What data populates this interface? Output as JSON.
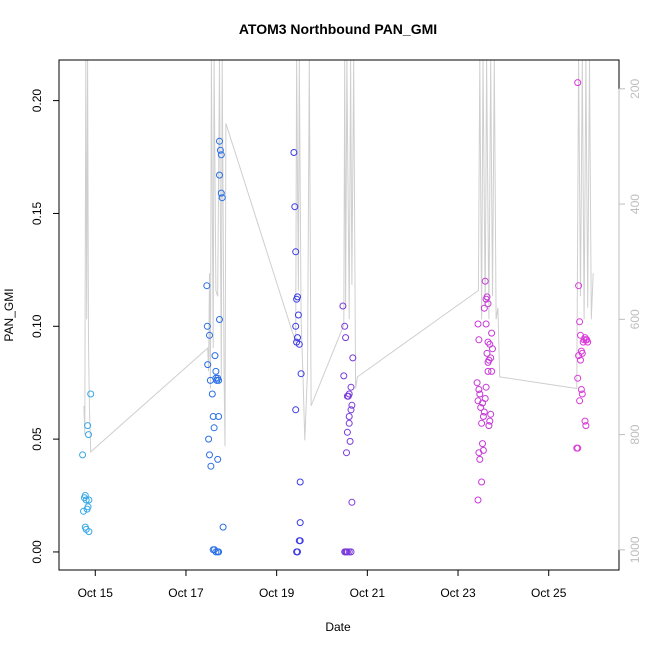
{
  "chart_data": {
    "type": "scatter",
    "title": "ATOM3 Northbound PAN_GMI",
    "xlabel": "Date",
    "ylabel": "PAN_GMI",
    "x_unit": "days (Oct)",
    "xlim": [
      14.2,
      26.55
    ],
    "ylim": [
      -0.008,
      0.218
    ],
    "x_ticks": [
      {
        "value": 15,
        "label": "Oct 15"
      },
      {
        "value": 17,
        "label": "Oct 17"
      },
      {
        "value": 19,
        "label": "Oct 19"
      },
      {
        "value": 21,
        "label": "Oct 21"
      },
      {
        "value": 23,
        "label": "Oct 23"
      },
      {
        "value": 25,
        "label": "Oct 25"
      }
    ],
    "y_ticks": [
      {
        "value": 0.0,
        "label": "0.00"
      },
      {
        "value": 0.05,
        "label": "0.05"
      },
      {
        "value": 0.1,
        "label": "0.10"
      },
      {
        "value": 0.15,
        "label": "0.15"
      },
      {
        "value": 0.2,
        "label": "0.20"
      }
    ],
    "secondary_axis": {
      "side": "right",
      "color": "#bdbdbd",
      "reversed": true,
      "ylim": [
        1035,
        150
      ],
      "ticks": [
        {
          "value": 200,
          "label": "200"
        },
        {
          "value": 400,
          "label": "400"
        },
        {
          "value": 600,
          "label": "600"
        },
        {
          "value": 800,
          "label": "800"
        },
        {
          "value": 1000,
          "label": "1000"
        }
      ]
    },
    "pressure_line": {
      "color": "#cfcfcf",
      "points": [
        [
          14.75,
          750
        ],
        [
          14.77,
          800
        ],
        [
          14.79,
          140
        ],
        [
          14.81,
          600
        ],
        [
          14.83,
          140
        ],
        [
          14.85,
          640
        ],
        [
          14.87,
          750
        ],
        [
          14.9,
          830
        ],
        [
          17.48,
          650
        ],
        [
          17.5,
          690
        ],
        [
          17.52,
          520
        ],
        [
          17.54,
          720
        ],
        [
          17.56,
          140
        ],
        [
          17.6,
          650
        ],
        [
          17.62,
          140
        ],
        [
          17.66,
          550
        ],
        [
          17.7,
          560
        ],
        [
          17.74,
          140
        ],
        [
          17.78,
          700
        ],
        [
          17.8,
          140
        ],
        [
          17.84,
          700
        ],
        [
          17.86,
          820
        ],
        [
          17.88,
          260
        ],
        [
          19.42,
          640
        ],
        [
          19.44,
          140
        ],
        [
          19.48,
          550
        ],
        [
          19.5,
          140
        ],
        [
          19.54,
          600
        ],
        [
          19.58,
          700
        ],
        [
          19.62,
          810
        ],
        [
          19.68,
          690
        ],
        [
          19.72,
          140
        ],
        [
          19.76,
          750
        ],
        [
          20.48,
          610
        ],
        [
          20.5,
          140
        ],
        [
          20.52,
          580
        ],
        [
          20.55,
          140
        ],
        [
          20.6,
          600
        ],
        [
          20.63,
          140
        ],
        [
          20.66,
          540
        ],
        [
          20.7,
          140
        ],
        [
          20.74,
          720
        ],
        [
          20.78,
          700
        ],
        [
          23.45,
          550
        ],
        [
          23.48,
          140
        ],
        [
          23.52,
          600
        ],
        [
          23.55,
          140
        ],
        [
          23.6,
          580
        ],
        [
          23.63,
          140
        ],
        [
          23.68,
          600
        ],
        [
          23.72,
          140
        ],
        [
          23.76,
          560
        ],
        [
          23.8,
          140
        ],
        [
          23.84,
          600
        ],
        [
          23.88,
          580
        ],
        [
          23.92,
          700
        ],
        [
          25.62,
          720
        ],
        [
          25.66,
          140
        ],
        [
          25.7,
          560
        ],
        [
          25.74,
          140
        ],
        [
          25.78,
          600
        ],
        [
          25.82,
          140
        ],
        [
          25.86,
          580
        ],
        [
          25.9,
          140
        ],
        [
          25.94,
          600
        ],
        [
          25.98,
          520
        ]
      ]
    },
    "series": [
      {
        "color": "#38a9e8",
        "points": [
          [
            14.72,
            0.043
          ],
          [
            14.74,
            0.018
          ],
          [
            14.76,
            0.024
          ],
          [
            14.78,
            0.025
          ],
          [
            14.8,
            0.023
          ],
          [
            14.78,
            0.011
          ],
          [
            14.8,
            0.01
          ],
          [
            14.82,
            0.019
          ],
          [
            14.84,
            0.02
          ],
          [
            14.86,
            0.023
          ],
          [
            14.86,
            0.009
          ],
          [
            14.83,
            0.056
          ],
          [
            14.85,
            0.052
          ],
          [
            14.9,
            0.07
          ]
        ]
      },
      {
        "color": "#2a6fe6",
        "points": [
          [
            17.46,
            0.118
          ],
          [
            17.47,
            0.1
          ],
          [
            17.48,
            0.083
          ],
          [
            17.5,
            0.05
          ],
          [
            17.52,
            0.043
          ],
          [
            17.55,
            0.038
          ],
          [
            17.52,
            0.096
          ],
          [
            17.54,
            0.076
          ],
          [
            17.58,
            0.07
          ],
          [
            17.6,
            0.06
          ],
          [
            17.62,
            0.055
          ],
          [
            17.6,
            0.001
          ],
          [
            17.63,
            0.001
          ],
          [
            17.66,
            0.0
          ],
          [
            17.7,
            0.0
          ],
          [
            17.72,
            0.0
          ],
          [
            17.64,
            0.087
          ],
          [
            17.66,
            0.08
          ],
          [
            17.68,
            0.076
          ],
          [
            17.7,
            0.077
          ],
          [
            17.72,
            0.076
          ],
          [
            17.74,
            0.103
          ],
          [
            17.66,
            0.077
          ],
          [
            17.7,
            0.041
          ],
          [
            17.72,
            0.06
          ],
          [
            17.74,
            0.182
          ],
          [
            17.76,
            0.178
          ],
          [
            17.78,
            0.176
          ],
          [
            17.74,
            0.167
          ],
          [
            17.78,
            0.159
          ],
          [
            17.8,
            0.157
          ],
          [
            17.82,
            0.011
          ]
        ]
      },
      {
        "color": "#3b3be6",
        "points": [
          [
            19.38,
            0.177
          ],
          [
            19.4,
            0.153
          ],
          [
            19.42,
            0.133
          ],
          [
            19.44,
            0.112
          ],
          [
            19.46,
            0.113
          ],
          [
            19.42,
            0.1
          ],
          [
            19.44,
            0.093
          ],
          [
            19.48,
            0.105
          ],
          [
            19.5,
            0.092
          ],
          [
            19.46,
            0.095
          ],
          [
            19.42,
            0.063
          ],
          [
            19.54,
            0.079
          ],
          [
            19.52,
            0.031
          ],
          [
            19.52,
            0.013
          ],
          [
            19.5,
            0.005
          ],
          [
            19.52,
            0.005
          ],
          [
            19.44,
            0.0
          ],
          [
            19.46,
            0.0
          ]
        ]
      },
      {
        "color": "#7a3ad9",
        "points": [
          [
            20.46,
            0.109
          ],
          [
            20.5,
            0.1
          ],
          [
            20.52,
            0.095
          ],
          [
            20.48,
            0.078
          ],
          [
            20.54,
            0.044
          ],
          [
            20.56,
            0.053
          ],
          [
            20.58,
            0.069
          ],
          [
            20.6,
            0.07
          ],
          [
            20.56,
            0.069
          ],
          [
            20.6,
            0.057
          ],
          [
            20.62,
            0.049
          ],
          [
            20.6,
            0.06
          ],
          [
            20.64,
            0.063
          ],
          [
            20.66,
            0.065
          ],
          [
            20.68,
            0.086
          ],
          [
            20.64,
            0.073
          ],
          [
            20.66,
            0.022
          ],
          [
            20.5,
            0.0
          ],
          [
            20.52,
            0.0
          ],
          [
            20.54,
            0.0
          ],
          [
            20.56,
            0.0
          ],
          [
            20.6,
            0.0
          ],
          [
            20.64,
            0.0
          ]
        ]
      },
      {
        "color": "#c639d6",
        "points": [
          [
            23.42,
            0.075
          ],
          [
            23.44,
            0.101
          ],
          [
            23.46,
            0.094
          ],
          [
            23.48,
            0.07
          ],
          [
            23.44,
            0.067
          ],
          [
            23.46,
            0.072
          ],
          [
            23.5,
            0.064
          ],
          [
            23.52,
            0.057
          ],
          [
            23.54,
            0.066
          ],
          [
            23.56,
            0.06
          ],
          [
            23.58,
            0.062
          ],
          [
            23.54,
            0.048
          ],
          [
            23.56,
            0.045
          ],
          [
            23.48,
            0.041
          ],
          [
            23.52,
            0.031
          ],
          [
            23.44,
            0.023
          ],
          [
            23.46,
            0.044
          ],
          [
            23.6,
            0.12
          ],
          [
            23.62,
            0.112
          ],
          [
            23.64,
            0.113
          ],
          [
            23.66,
            0.11
          ],
          [
            23.58,
            0.108
          ],
          [
            23.62,
            0.101
          ],
          [
            23.66,
            0.093
          ],
          [
            23.7,
            0.092
          ],
          [
            23.64,
            0.088
          ],
          [
            23.66,
            0.084
          ],
          [
            23.68,
            0.085
          ],
          [
            23.72,
            0.086
          ],
          [
            23.74,
            0.097
          ],
          [
            23.76,
            0.09
          ],
          [
            23.7,
            0.058
          ],
          [
            23.68,
            0.056
          ],
          [
            23.6,
            0.068
          ],
          [
            23.62,
            0.073
          ],
          [
            23.72,
            0.061
          ],
          [
            23.74,
            0.08
          ],
          [
            23.66,
            0.08
          ]
        ]
      },
      {
        "color": "#d93ad9",
        "points": [
          [
            25.64,
            0.208
          ],
          [
            25.66,
            0.118
          ],
          [
            25.68,
            0.102
          ],
          [
            25.7,
            0.096
          ],
          [
            25.72,
            0.089
          ],
          [
            25.74,
            0.088
          ],
          [
            25.76,
            0.093
          ],
          [
            25.78,
            0.094
          ],
          [
            25.8,
            0.095
          ],
          [
            25.82,
            0.094
          ],
          [
            25.66,
            0.087
          ],
          [
            25.7,
            0.085
          ],
          [
            25.64,
            0.077
          ],
          [
            25.68,
            0.067
          ],
          [
            25.72,
            0.072
          ],
          [
            25.74,
            0.07
          ],
          [
            25.62,
            0.046
          ],
          [
            25.64,
            0.046
          ],
          [
            25.8,
            0.058
          ],
          [
            25.82,
            0.056
          ],
          [
            25.84,
            0.094
          ],
          [
            25.86,
            0.093
          ]
        ]
      }
    ]
  }
}
